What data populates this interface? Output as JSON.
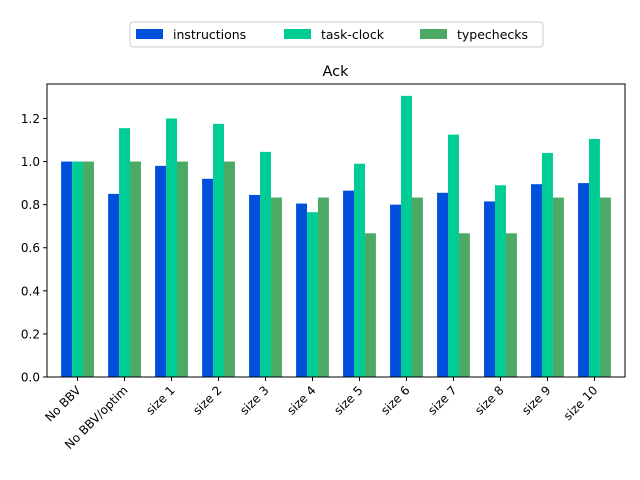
{
  "chart_data": {
    "type": "bar",
    "title": "Ack",
    "xlabel": "",
    "ylabel": "",
    "ylim": [
      0,
      1.36
    ],
    "yticks": [
      0.0,
      0.2,
      0.4,
      0.6,
      0.8,
      1.0,
      1.2
    ],
    "ytick_labels": [
      "0.0",
      "0.2",
      "0.4",
      "0.6",
      "0.8",
      "1.0",
      "1.2"
    ],
    "grid": false,
    "legend_position": "top-center",
    "categories": [
      "No BBV",
      "No BBV/optim",
      "size 1",
      "size 2",
      "size 3",
      "size 4",
      "size 5",
      "size 6",
      "size 7",
      "size 8",
      "size 9",
      "size 10"
    ],
    "series": [
      {
        "name": "instructions",
        "color": "#0050dc",
        "values": [
          1.0,
          0.85,
          0.98,
          0.92,
          0.845,
          0.805,
          0.865,
          0.8,
          0.855,
          0.815,
          0.895,
          0.9
        ]
      },
      {
        "name": "task-clock",
        "color": "#00cc96",
        "values": [
          1.0,
          1.155,
          1.2,
          1.175,
          1.045,
          0.765,
          0.99,
          1.305,
          1.125,
          0.89,
          1.04,
          1.105
        ]
      },
      {
        "name": "typechecks",
        "color": "#4caa64",
        "values": [
          1.0,
          1.0,
          1.0,
          1.0,
          0.833,
          0.833,
          0.667,
          0.833,
          0.667,
          0.667,
          0.833,
          0.833
        ]
      }
    ]
  }
}
